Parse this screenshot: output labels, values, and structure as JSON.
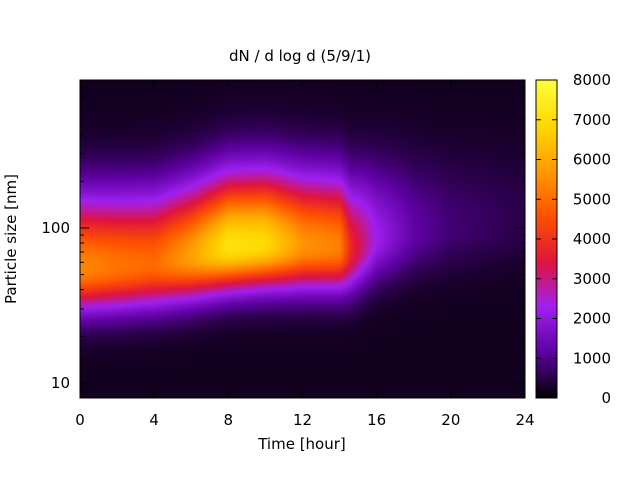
{
  "chart_data": {
    "type": "heatmap",
    "title": "dN / d log d (5/9/1)",
    "xlabel": "Time [hour]",
    "ylabel": "Particle size [nm]",
    "xlim": [
      0,
      24
    ],
    "ylim": [
      8,
      900
    ],
    "y_scale": "log",
    "x_ticks": [
      "0",
      "4",
      "8",
      "12",
      "16",
      "20",
      "24"
    ],
    "y_ticks": [
      "10",
      "100"
    ],
    "colorbar": {
      "range": [
        0,
        8000
      ],
      "ticks": [
        "0",
        "1000",
        "2000",
        "3000",
        "4000",
        "5000",
        "6000",
        "7000",
        "8000"
      ],
      "colors": [
        "#000000",
        "#5c00a0",
        "#a020f0",
        "#e0143c",
        "#ff5000",
        "#ff9a00",
        "#ffd800",
        "#ffff3c"
      ]
    },
    "mode_trend": {
      "hours": [
        0,
        2,
        4,
        6,
        8,
        10,
        12,
        14,
        14.6,
        16,
        18,
        20,
        24
      ],
      "peak_size_nm": [
        55,
        56,
        58,
        65,
        75,
        78,
        76,
        75,
        72,
        85,
        95,
        100,
        110
      ],
      "peak_value": [
        5200,
        4900,
        4700,
        5600,
        6900,
        6700,
        5400,
        5100,
        3600,
        2000,
        1000,
        600,
        300
      ]
    },
    "grid": false,
    "legend": "colorbar-right"
  }
}
